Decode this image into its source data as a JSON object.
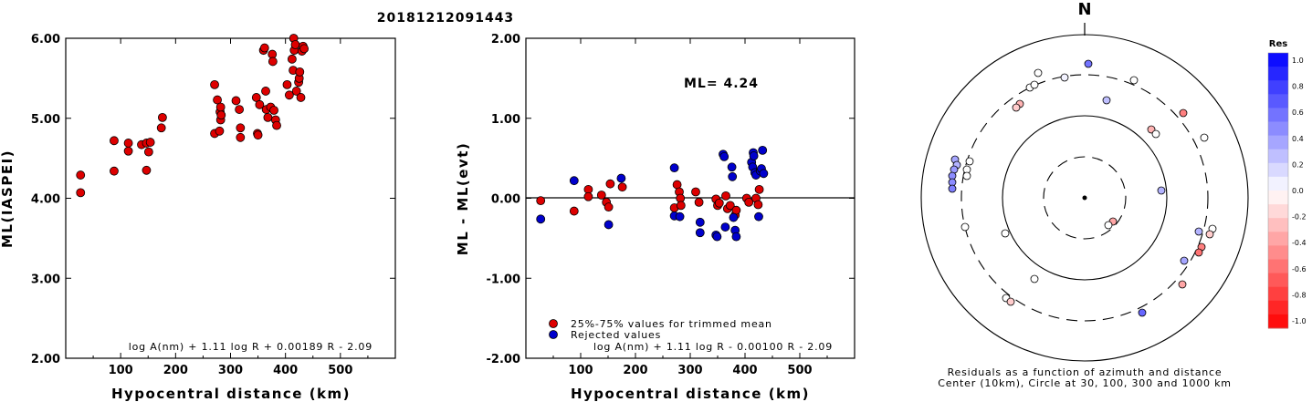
{
  "title": "20181212091443",
  "chart_data": [
    {
      "type": "scatter",
      "xlabel": "Hypocentral distance (km)",
      "ylabel": "ML(IASPEI)",
      "xlim": [
        0,
        600
      ],
      "ylim": [
        2.0,
        6.0
      ],
      "x_ticks": [
        "100",
        "200",
        "300",
        "400",
        "500"
      ],
      "y_ticks": [
        "2.00",
        "3.00",
        "4.00",
        "5.00",
        "6.00"
      ],
      "formula": "log A(nm) + 1.11 log R + 0.00189 R - 2.09",
      "color": "#dd0000",
      "points": [
        [
          27,
          4.29
        ],
        [
          27,
          4.07
        ],
        [
          88,
          4.72
        ],
        [
          88,
          4.34
        ],
        [
          114,
          4.69
        ],
        [
          114,
          4.59
        ],
        [
          138,
          4.67
        ],
        [
          147,
          4.69
        ],
        [
          147,
          4.35
        ],
        [
          151,
          4.58
        ],
        [
          154,
          4.7
        ],
        [
          174,
          4.88
        ],
        [
          176,
          5.01
        ],
        [
          271,
          5.42
        ],
        [
          271,
          4.81
        ],
        [
          276,
          5.23
        ],
        [
          280,
          4.84
        ],
        [
          281,
          5.08
        ],
        [
          282,
          5.14
        ],
        [
          282,
          4.98
        ],
        [
          283,
          5.04
        ],
        [
          310,
          5.22
        ],
        [
          316,
          5.11
        ],
        [
          318,
          4.88
        ],
        [
          318,
          4.76
        ],
        [
          347,
          5.26
        ],
        [
          349,
          4.81
        ],
        [
          350,
          4.79
        ],
        [
          353,
          5.17
        ],
        [
          360,
          5.85
        ],
        [
          362,
          5.88
        ],
        [
          364,
          5.34
        ],
        [
          365,
          5.11
        ],
        [
          368,
          5.01
        ],
        [
          373,
          5.14
        ],
        [
          376,
          5.8
        ],
        [
          377,
          5.71
        ],
        [
          379,
          5.1
        ],
        [
          382,
          4.98
        ],
        [
          384,
          4.91
        ],
        [
          403,
          5.42
        ],
        [
          407,
          5.29
        ],
        [
          412,
          5.74
        ],
        [
          414,
          5.6
        ],
        [
          415,
          6.0
        ],
        [
          416,
          5.85
        ],
        [
          418,
          5.92
        ],
        [
          420,
          5.34
        ],
        [
          424,
          5.45
        ],
        [
          425,
          5.5
        ],
        [
          426,
          5.58
        ],
        [
          428,
          5.26
        ],
        [
          430,
          5.84
        ],
        [
          432,
          5.9
        ],
        [
          434,
          5.87
        ]
      ]
    },
    {
      "type": "scatter",
      "xlabel": "Hypocentral distance (km)",
      "ylabel": "ML - ML(evt)",
      "xlim": [
        0,
        600
      ],
      "ylim": [
        -2.0,
        2.0
      ],
      "x_ticks": [
        "100",
        "200",
        "300",
        "400",
        "500"
      ],
      "y_ticks": [
        "-2.00",
        "-1.00",
        "0.00",
        "1.00",
        "2.00"
      ],
      "annotation": "ML= 4.24",
      "formula": "log A(nm) + 1.11 log R - 0.00100 R - 2.09",
      "series": [
        {
          "name": "25%-75% values for trimmed mean",
          "color": "#dd0000",
          "points": [
            [
              27,
              -0.03
            ],
            [
              88,
              -0.16
            ],
            [
              114,
              0.11
            ],
            [
              114,
              0.02
            ],
            [
              138,
              0.04
            ],
            [
              147,
              -0.05
            ],
            [
              151,
              -0.11
            ],
            [
              154,
              0.18
            ],
            [
              176,
              0.14
            ],
            [
              271,
              -0.12
            ],
            [
              276,
              0.17
            ],
            [
              280,
              0.08
            ],
            [
              282,
              0.0
            ],
            [
              283,
              -0.09
            ],
            [
              310,
              0.08
            ],
            [
              316,
              -0.05
            ],
            [
              347,
              -0.01
            ],
            [
              350,
              -0.09
            ],
            [
              353,
              -0.06
            ],
            [
              365,
              0.03
            ],
            [
              368,
              -0.13
            ],
            [
              373,
              -0.09
            ],
            [
              382,
              -0.21
            ],
            [
              384,
              -0.15
            ],
            [
              403,
              0.0
            ],
            [
              407,
              -0.05
            ],
            [
              420,
              0.0
            ],
            [
              424,
              -0.08
            ],
            [
              426,
              0.11
            ]
          ]
        },
        {
          "name": "Rejected values",
          "color": "#0000cc",
          "points": [
            [
              27,
              -0.26
            ],
            [
              88,
              0.22
            ],
            [
              151,
              -0.33
            ],
            [
              174,
              0.25
            ],
            [
              271,
              0.38
            ],
            [
              271,
              -0.22
            ],
            [
              281,
              -0.23
            ],
            [
              318,
              -0.3
            ],
            [
              318,
              -0.43
            ],
            [
              347,
              -0.46
            ],
            [
              349,
              -0.48
            ],
            [
              360,
              0.55
            ],
            [
              362,
              0.52
            ],
            [
              364,
              -0.36
            ],
            [
              376,
              0.39
            ],
            [
              377,
              0.27
            ],
            [
              379,
              -0.24
            ],
            [
              382,
              -0.4
            ],
            [
              384,
              -0.48
            ],
            [
              412,
              0.45
            ],
            [
              414,
              0.39
            ],
            [
              415,
              0.57
            ],
            [
              416,
              0.53
            ],
            [
              418,
              0.32
            ],
            [
              420,
              0.29
            ],
            [
              425,
              -0.23
            ],
            [
              428,
              0.34
            ],
            [
              430,
              0.37
            ],
            [
              432,
              0.6
            ],
            [
              434,
              0.31
            ]
          ]
        }
      ]
    },
    {
      "type": "scatter",
      "compass_label": "N",
      "caption": [
        "Residuals as a function of azimuth and distance",
        "Center (10km), Circle at 30, 100, 300 and 1000 km"
      ],
      "colorbar_title": "Res",
      "colorbar_labels": [
        "1.0",
        "0.8",
        "0.6",
        "0.4",
        "0.2",
        "0.0",
        "-0.2",
        "-0.4",
        "-0.6",
        "-0.8",
        "-1.0"
      ],
      "points_residual": [
        [
          1192,
          70,
          0.55
        ],
        [
          1166,
          85,
          0.05
        ],
        [
          1137,
          80,
          0.0
        ],
        [
          1128,
          96,
          0.0
        ],
        [
          1133,
          93,
          0.0
        ],
        [
          1242,
          88,
          0.0
        ],
        [
          1212,
          110,
          0.25
        ],
        [
          1117,
          114,
          -0.3
        ],
        [
          1113,
          118,
          -0.2
        ],
        [
          1296,
          124,
          -0.5
        ],
        [
          1261,
          142,
          -0.3
        ],
        [
          1266,
          147,
          0.0
        ],
        [
          1319,
          151,
          0.0
        ],
        [
          1062,
          177,
          0.0
        ],
        [
          1046,
          175,
          0.35
        ],
        [
          1048,
          181,
          0.3
        ],
        [
          1045,
          186,
          0.4
        ],
        [
          1059,
          186,
          0.0
        ],
        [
          1059,
          193,
          0.0
        ],
        [
          1043,
          193,
          0.45
        ],
        [
          1043,
          200,
          0.45
        ],
        [
          1043,
          207,
          0.5
        ],
        [
          1272,
          209,
          0.3
        ],
        [
          1219,
          243,
          -0.35
        ],
        [
          1214,
          247,
          0.0
        ],
        [
          1057,
          249,
          0.0
        ],
        [
          1101,
          256,
          0.0
        ],
        [
          1313,
          254,
          0.3
        ],
        [
          1328,
          251,
          0.0
        ],
        [
          1325,
          257,
          -0.2
        ],
        [
          1316,
          271,
          -0.5
        ],
        [
          1313,
          277,
          -0.55
        ],
        [
          1297,
          286,
          0.35
        ],
        [
          1133,
          306,
          0.0
        ],
        [
          1295,
          312,
          -0.35
        ],
        [
          1102,
          327,
          0.0
        ],
        [
          1107,
          331,
          -0.2
        ],
        [
          1251,
          343,
          0.6
        ]
      ]
    }
  ]
}
